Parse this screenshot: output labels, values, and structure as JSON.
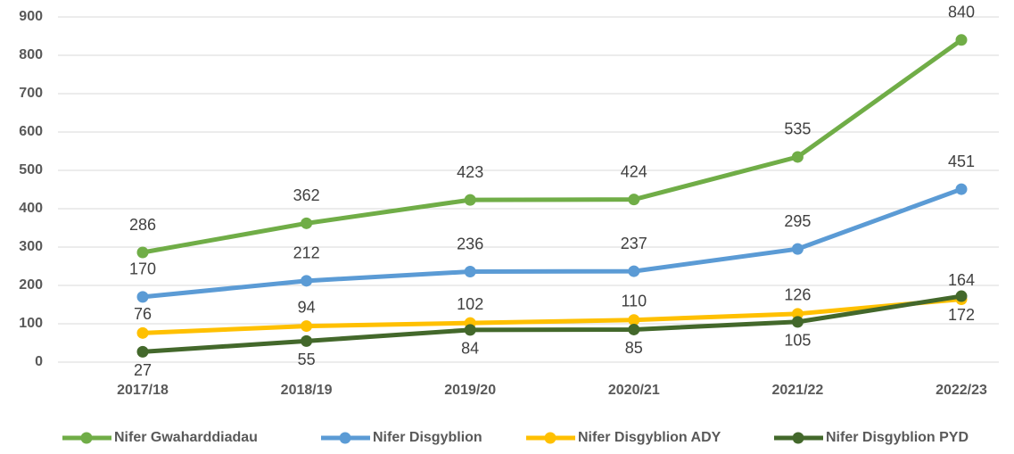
{
  "chart_data": {
    "type": "line",
    "categories": [
      "2017/18",
      "2018/19",
      "2019/20",
      "2020/21",
      "2021/22",
      "2022/23"
    ],
    "series": [
      {
        "name": "Nifer Gwaharddiadau",
        "color": "#70ad47",
        "values": [
          286,
          362,
          423,
          424,
          535,
          840
        ]
      },
      {
        "name": "Nifer Disgyblion",
        "color": "#5b9bd5",
        "values": [
          170,
          212,
          236,
          237,
          295,
          451
        ]
      },
      {
        "name": "Nifer Disgyblion ADY",
        "color": "#ffc000",
        "values": [
          76,
          94,
          102,
          110,
          126,
          164
        ]
      },
      {
        "name": "Nifer Disgyblion PYD",
        "color": "#43682b",
        "values": [
          27,
          55,
          84,
          85,
          105,
          172
        ]
      }
    ],
    "ylim": [
      0,
      900
    ],
    "yticks": [
      0,
      100,
      200,
      300,
      400,
      500,
      600,
      700,
      800,
      900
    ],
    "grid": true,
    "legend": "bottom"
  }
}
